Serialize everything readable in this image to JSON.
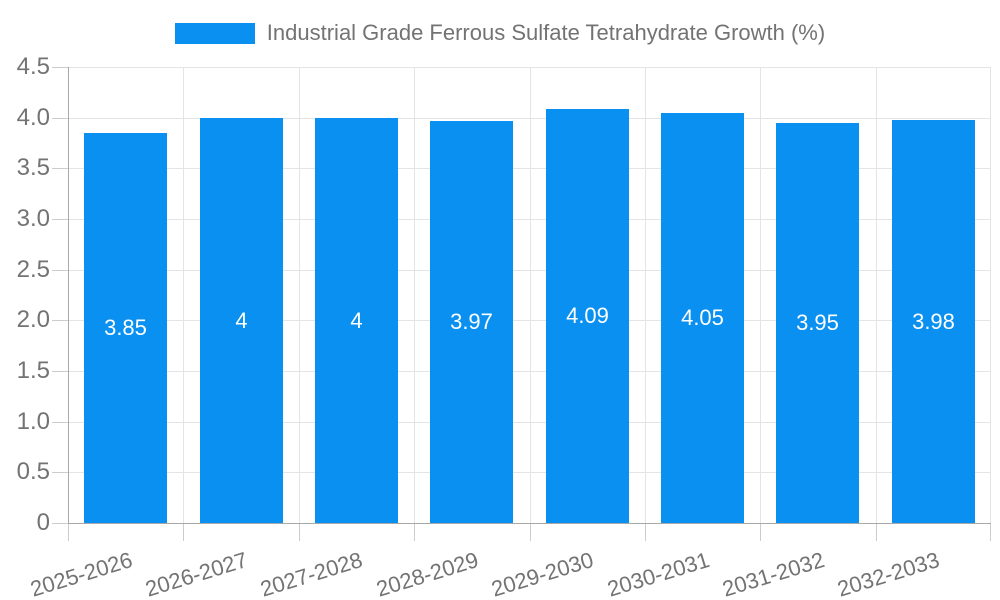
{
  "chart_data": {
    "type": "bar",
    "title": "",
    "legend": {
      "label": "Industrial Grade Ferrous Sulfate Tetrahydrate Growth (%)",
      "position": "top-center"
    },
    "categories": [
      "2025-2026",
      "2026-2027",
      "2027-2028",
      "2028-2029",
      "2029-2030",
      "2030-2031",
      "2031-2032",
      "2032-2033"
    ],
    "values": [
      3.85,
      4,
      4,
      3.97,
      4.09,
      4.05,
      3.95,
      3.98
    ],
    "value_labels": [
      "3.85",
      "4",
      "4",
      "3.97",
      "4.09",
      "4.05",
      "3.95",
      "3.98"
    ],
    "xlabel": "",
    "ylabel": "",
    "ylim": [
      0,
      4.5
    ],
    "ytick_step": 0.5,
    "ytick_labels": [
      "4.5",
      "4.0",
      "3.5",
      "3.0",
      "2.5",
      "2.0",
      "1.5",
      "1.0",
      "0.5",
      "0"
    ],
    "grid": "horizontal-and-vertical",
    "value_labels_position": "inside-center",
    "colors": {
      "bar": "#0a90f0",
      "value_label_text": "#ffffff",
      "grid_line": "#e4e4e4",
      "axis_line": "#a8a8a8",
      "tick_mark": "#cccccc",
      "axis_text": "#737373",
      "legend_text": "#737373",
      "background": "#ffffff"
    }
  }
}
